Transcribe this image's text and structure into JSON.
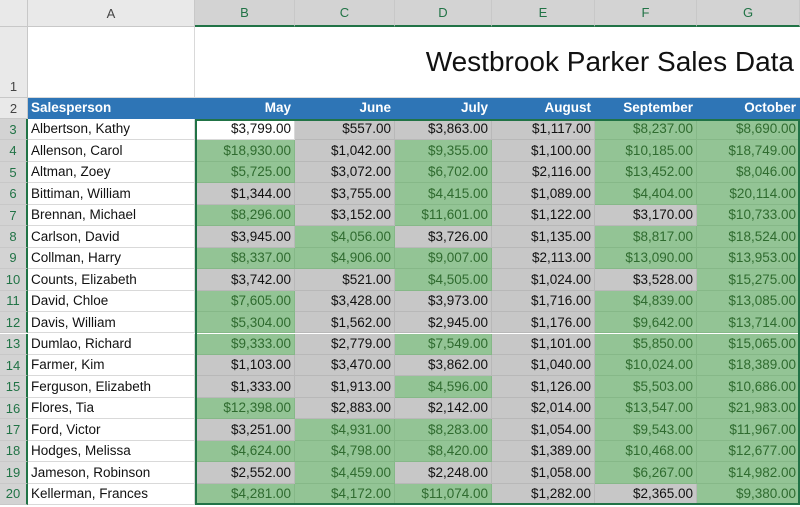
{
  "sheet": {
    "column_letters": [
      "A",
      "B",
      "C",
      "D",
      "E",
      "F",
      "G"
    ],
    "title": {
      "row": "1",
      "text": "Westbrook Parker Sales Data"
    },
    "header": {
      "row": "2",
      "cells": [
        "Salesperson",
        "May",
        "June",
        "July",
        "August",
        "September",
        "October"
      ]
    },
    "rows": [
      {
        "row": "3",
        "salesperson": "Albertson, Kathy",
        "cells": [
          "$3,799.00",
          "$557.00",
          "$3,863.00",
          "$1,117.00",
          "$8,237.00",
          "$8,690.00"
        ],
        "highlight": [
          false,
          false,
          false,
          false,
          true,
          true
        ]
      },
      {
        "row": "4",
        "salesperson": "Allenson, Carol",
        "cells": [
          "$18,930.00",
          "$1,042.00",
          "$9,355.00",
          "$1,100.00",
          "$10,185.00",
          "$18,749.00"
        ],
        "highlight": [
          true,
          false,
          true,
          false,
          true,
          true
        ]
      },
      {
        "row": "5",
        "salesperson": "Altman, Zoey",
        "cells": [
          "$5,725.00",
          "$3,072.00",
          "$6,702.00",
          "$2,116.00",
          "$13,452.00",
          "$8,046.00"
        ],
        "highlight": [
          true,
          false,
          true,
          false,
          true,
          true
        ]
      },
      {
        "row": "6",
        "salesperson": "Bittiman, William",
        "cells": [
          "$1,344.00",
          "$3,755.00",
          "$4,415.00",
          "$1,089.00",
          "$4,404.00",
          "$20,114.00"
        ],
        "highlight": [
          false,
          false,
          true,
          false,
          true,
          true
        ]
      },
      {
        "row": "7",
        "salesperson": "Brennan, Michael",
        "cells": [
          "$8,296.00",
          "$3,152.00",
          "$11,601.00",
          "$1,122.00",
          "$3,170.00",
          "$10,733.00"
        ],
        "highlight": [
          true,
          false,
          true,
          false,
          false,
          true
        ]
      },
      {
        "row": "8",
        "salesperson": "Carlson, David",
        "cells": [
          "$3,945.00",
          "$4,056.00",
          "$3,726.00",
          "$1,135.00",
          "$8,817.00",
          "$18,524.00"
        ],
        "highlight": [
          false,
          true,
          false,
          false,
          true,
          true
        ]
      },
      {
        "row": "9",
        "salesperson": "Collman, Harry",
        "cells": [
          "$8,337.00",
          "$4,906.00",
          "$9,007.00",
          "$2,113.00",
          "$13,090.00",
          "$13,953.00"
        ],
        "highlight": [
          true,
          true,
          true,
          false,
          true,
          true
        ]
      },
      {
        "row": "10",
        "salesperson": "Counts, Elizabeth",
        "cells": [
          "$3,742.00",
          "$521.00",
          "$4,505.00",
          "$1,024.00",
          "$3,528.00",
          "$15,275.00"
        ],
        "highlight": [
          false,
          false,
          true,
          false,
          false,
          true
        ]
      },
      {
        "row": "11",
        "salesperson": "David, Chloe",
        "cells": [
          "$7,605.00",
          "$3,428.00",
          "$3,973.00",
          "$1,716.00",
          "$4,839.00",
          "$13,085.00"
        ],
        "highlight": [
          true,
          false,
          false,
          false,
          true,
          true
        ]
      },
      {
        "row": "12",
        "salesperson": "Davis, William",
        "cells": [
          "$5,304.00",
          "$1,562.00",
          "$2,945.00",
          "$1,176.00",
          "$9,642.00",
          "$13,714.00"
        ],
        "highlight": [
          true,
          false,
          false,
          false,
          true,
          true
        ]
      },
      {
        "row": "13",
        "salesperson": "Dumlao, Richard",
        "cells": [
          "$9,333.00",
          "$2,779.00",
          "$7,549.00",
          "$1,101.00",
          "$5,850.00",
          "$15,065.00"
        ],
        "highlight": [
          true,
          false,
          true,
          false,
          true,
          true
        ]
      },
      {
        "row": "14",
        "salesperson": "Farmer, Kim",
        "cells": [
          "$1,103.00",
          "$3,470.00",
          "$3,862.00",
          "$1,040.00",
          "$10,024.00",
          "$18,389.00"
        ],
        "highlight": [
          false,
          false,
          false,
          false,
          true,
          true
        ]
      },
      {
        "row": "15",
        "salesperson": "Ferguson, Elizabeth",
        "cells": [
          "$1,333.00",
          "$1,913.00",
          "$4,596.00",
          "$1,126.00",
          "$5,503.00",
          "$10,686.00"
        ],
        "highlight": [
          false,
          false,
          true,
          false,
          true,
          true
        ]
      },
      {
        "row": "16",
        "salesperson": "Flores, Tia",
        "cells": [
          "$12,398.00",
          "$2,883.00",
          "$2,142.00",
          "$2,014.00",
          "$13,547.00",
          "$21,983.00"
        ],
        "highlight": [
          true,
          false,
          false,
          false,
          true,
          true
        ]
      },
      {
        "row": "17",
        "salesperson": "Ford, Victor",
        "cells": [
          "$3,251.00",
          "$4,931.00",
          "$8,283.00",
          "$1,054.00",
          "$9,543.00",
          "$11,967.00"
        ],
        "highlight": [
          false,
          true,
          true,
          false,
          true,
          true
        ]
      },
      {
        "row": "18",
        "salesperson": "Hodges, Melissa",
        "cells": [
          "$4,624.00",
          "$4,798.00",
          "$8,420.00",
          "$1,389.00",
          "$10,468.00",
          "$12,677.00"
        ],
        "highlight": [
          true,
          true,
          true,
          false,
          true,
          true
        ]
      },
      {
        "row": "19",
        "salesperson": "Jameson, Robinson",
        "cells": [
          "$2,552.00",
          "$4,459.00",
          "$2,248.00",
          "$1,058.00",
          "$6,267.00",
          "$14,982.00"
        ],
        "highlight": [
          false,
          true,
          false,
          false,
          true,
          true
        ]
      },
      {
        "row": "20",
        "salesperson": "Kellerman, Frances",
        "cells": [
          "$4,281.00",
          "$4,172.00",
          "$11,074.00",
          "$1,282.00",
          "$2,365.00",
          "$9,380.00"
        ],
        "highlight": [
          true,
          true,
          true,
          false,
          false,
          true
        ]
      }
    ]
  }
}
